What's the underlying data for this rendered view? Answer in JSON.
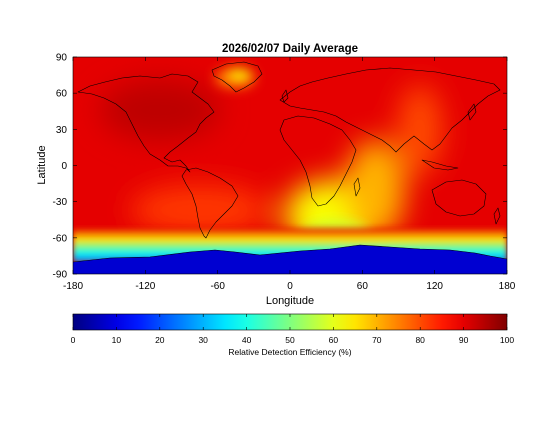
{
  "chart_data": {
    "type": "heatmap",
    "title": "2026/02/07 Daily Average",
    "xlabel": "Longitude",
    "ylabel": "Latitude",
    "xlim": [
      -180,
      180
    ],
    "ylim": [
      -90,
      90
    ],
    "xticks": [
      -180,
      -120,
      -60,
      0,
      60,
      120,
      180
    ],
    "yticks": [
      90,
      60,
      30,
      0,
      -30,
      -60,
      -90
    ],
    "grid": false,
    "colormap": "jet",
    "colorbar": {
      "label": "Relative Detection Efficiency (%)",
      "range": [
        0,
        100
      ],
      "ticks": [
        0,
        10,
        20,
        30,
        40,
        50,
        60,
        70,
        80,
        90,
        100
      ],
      "orientation": "horizontal",
      "placement": "bottom"
    },
    "field_description_values": {
      "background_level": 90,
      "antarctica_level": 8,
      "southern_ocean_band_level": 55,
      "south_atlantic_region_level": 62,
      "greenland_level": 75
    },
    "overlay": "world coastlines"
  },
  "colors": {
    "background": "#ffffff",
    "axes_frame": "#000000",
    "coastline": "#000000"
  }
}
